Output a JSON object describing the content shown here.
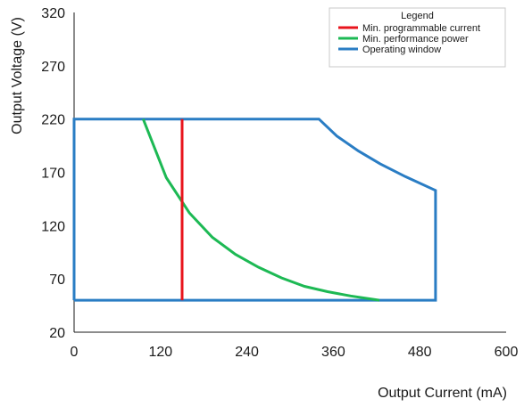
{
  "chart_data": {
    "type": "line",
    "xlabel": "Output Current (mA)",
    "ylabel": "Output Voltage (V)",
    "xlim": [
      0,
      600
    ],
    "ylim": [
      20,
      320
    ],
    "xticks": [
      0,
      120,
      240,
      360,
      480,
      600
    ],
    "yticks": [
      20,
      70,
      120,
      170,
      220,
      270,
      320
    ],
    "grid": false,
    "legend": {
      "title": "Legend",
      "placement": "top-right"
    },
    "series": [
      {
        "name": "Min. programmable current",
        "color": "#e8141c",
        "x": [
          150,
          150
        ],
        "y": [
          50,
          220
        ]
      },
      {
        "name": "Min. performance power",
        "color": "#1db954",
        "x": [
          96,
          128,
          160,
          192,
          224,
          256,
          288,
          320,
          352,
          384,
          424
        ],
        "y": [
          220,
          165,
          132,
          109,
          93,
          81,
          71,
          63,
          58,
          54,
          50
        ]
      },
      {
        "name": "Operating window",
        "color": "#2a7dc4",
        "x": [
          0,
          0,
          340,
          365,
          395,
          425,
          460,
          502,
          502,
          0
        ],
        "y": [
          50,
          220,
          220,
          204,
          190,
          178,
          166,
          153,
          50,
          50
        ]
      }
    ]
  }
}
